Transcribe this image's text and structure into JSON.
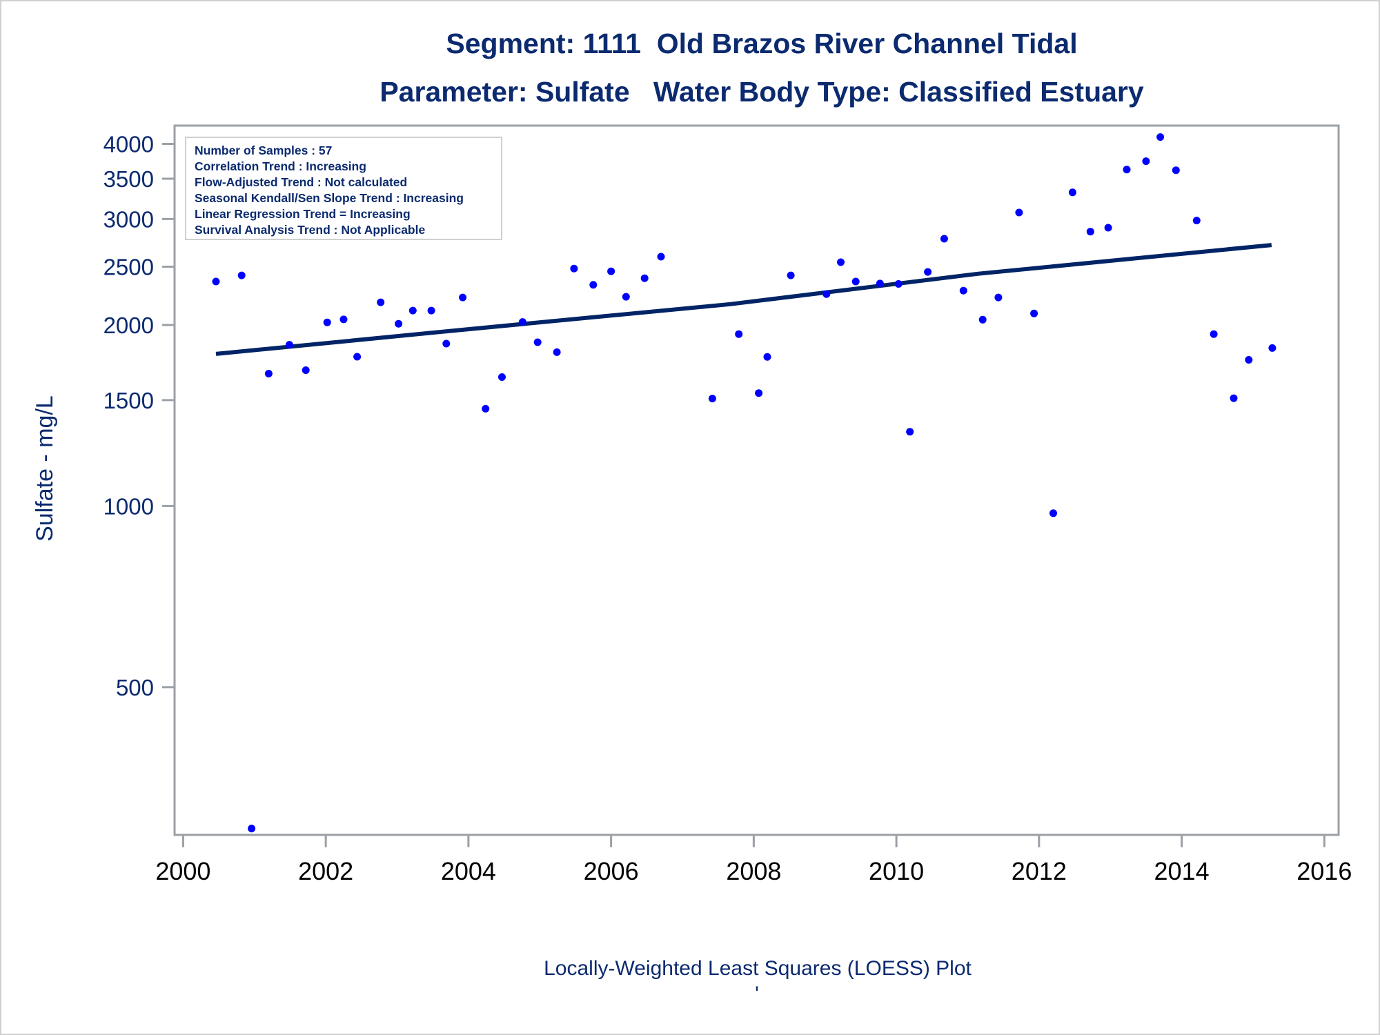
{
  "title_lines": [
    "Segment: 1111  Old Brazos River Channel Tidal",
    "Parameter: Sulfate   Water Body Type: Classified Estuary"
  ],
  "stats_box": [
    "Number of Samples : 57",
    "Correlation Trend : Increasing",
    "Flow-Adjusted Trend : Not calculated",
    "Seasonal Kendall/Sen Slope Trend : Increasing",
    "Linear Regression Trend = Increasing",
    "Survival Analysis Trend : Not Applicable"
  ],
  "footnote": "Locally-Weighted Least Squares (LOESS) Plot",
  "footnote_mark": "'",
  "colors": {
    "text": "#0b2a6f",
    "points": "#0000ff",
    "trend_line": "#002466",
    "axis": "#9ba0a6"
  },
  "chart_data": {
    "type": "scatter",
    "title": "Segment: 1111  Old Brazos River Channel Tidal / Parameter: Sulfate   Water Body Type: Classified Estuary",
    "xlabel": "",
    "ylabel": "Sulfate - mg/L",
    "yscale": "log",
    "xlim": [
      1999.88,
      2016.2
    ],
    "ylim": [
      284,
      4290
    ],
    "xticks": [
      2000,
      2002,
      2004,
      2006,
      2008,
      2010,
      2012,
      2014,
      2016
    ],
    "xtick_labels": [
      "2000",
      "2002",
      "2004",
      "2006",
      "2008",
      "2010",
      "2012",
      "2014",
      "2016"
    ],
    "yticks": [
      500,
      1000,
      1500,
      2000,
      2500,
      3000,
      3500,
      4000
    ],
    "ytick_labels": [
      "500",
      "1000",
      "1500",
      "2000",
      "2500",
      "3000",
      "3500",
      "4000"
    ],
    "grid": false,
    "series": [
      {
        "name": "Sulfate samples",
        "kind": "points",
        "points": [
          [
            2000.46,
            2362
          ],
          [
            2000.82,
            2418
          ],
          [
            2000.96,
            291
          ],
          [
            2001.2,
            1660
          ],
          [
            2001.49,
            1854
          ],
          [
            2001.72,
            1682
          ],
          [
            2002.02,
            2020
          ],
          [
            2002.25,
            2043
          ],
          [
            2002.44,
            1771
          ],
          [
            2002.77,
            2181
          ],
          [
            2003.02,
            2009
          ],
          [
            2003.22,
            2113
          ],
          [
            2003.48,
            2113
          ],
          [
            2003.69,
            1862
          ],
          [
            2003.92,
            2222
          ],
          [
            2004.24,
            1451
          ],
          [
            2004.47,
            1638
          ],
          [
            2004.76,
            2023
          ],
          [
            2004.97,
            1872
          ],
          [
            2005.24,
            1802
          ],
          [
            2005.48,
            2482
          ],
          [
            2005.75,
            2332
          ],
          [
            2006.0,
            2456
          ],
          [
            2006.21,
            2228
          ],
          [
            2006.47,
            2392
          ],
          [
            2006.7,
            2597
          ],
          [
            2007.42,
            1509
          ],
          [
            2007.79,
            1931
          ],
          [
            2008.07,
            1541
          ],
          [
            2008.19,
            1770
          ],
          [
            2008.52,
            2418
          ],
          [
            2009.02,
            2251
          ],
          [
            2009.22,
            2543
          ],
          [
            2009.43,
            2362
          ],
          [
            2009.77,
            2344
          ],
          [
            2010.03,
            2340
          ],
          [
            2010.19,
            1329
          ],
          [
            2010.44,
            2450
          ],
          [
            2010.67,
            2782
          ],
          [
            2010.94,
            2281
          ],
          [
            2011.21,
            2041
          ],
          [
            2011.43,
            2222
          ],
          [
            2011.72,
            3076
          ],
          [
            2011.93,
            2090
          ],
          [
            2012.2,
            973
          ],
          [
            2012.47,
            3322
          ],
          [
            2012.72,
            2859
          ],
          [
            2012.97,
            2902
          ],
          [
            2013.23,
            3626
          ],
          [
            2013.5,
            3743
          ],
          [
            2013.7,
            4106
          ],
          [
            2013.92,
            3616
          ],
          [
            2014.21,
            2983
          ],
          [
            2014.45,
            1931
          ],
          [
            2014.73,
            1511
          ],
          [
            2014.94,
            1750
          ],
          [
            2015.27,
            1831
          ]
        ]
      },
      {
        "name": "LOESS trend",
        "kind": "line",
        "points": [
          [
            2000.46,
            1790
          ],
          [
            2004.0,
            1968
          ],
          [
            2007.67,
            2166
          ],
          [
            2011.15,
            2433
          ],
          [
            2015.26,
            2716
          ]
        ]
      }
    ],
    "legend": "none"
  }
}
